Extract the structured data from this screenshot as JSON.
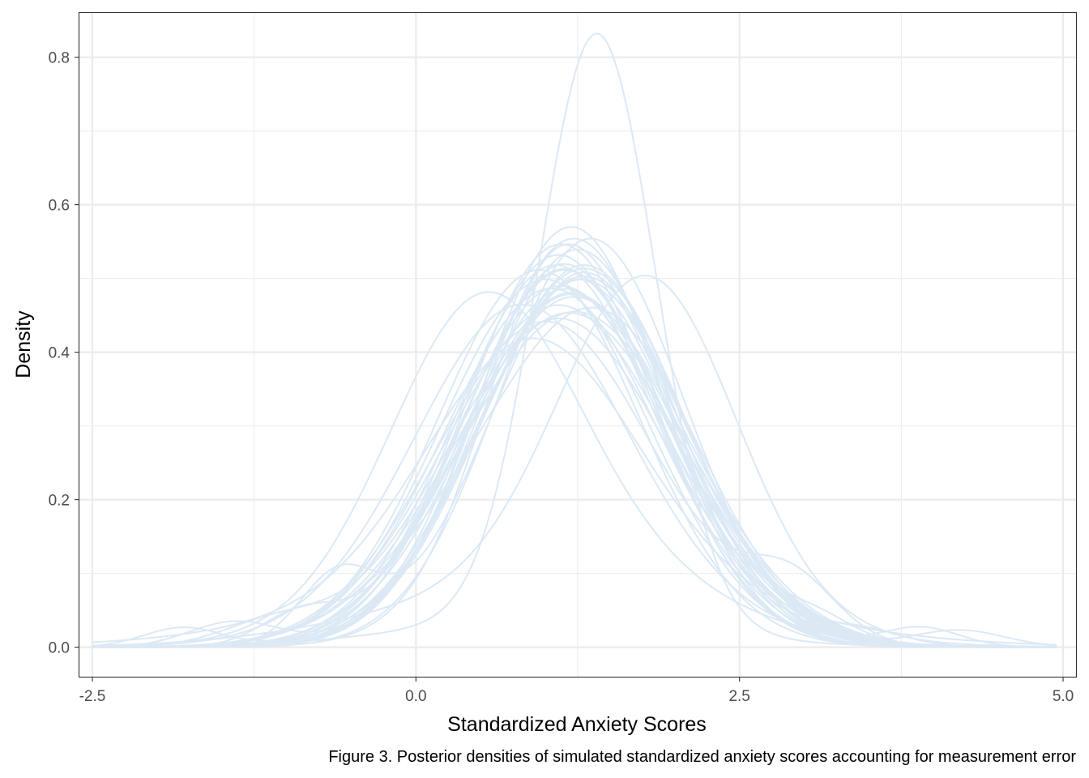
{
  "chart_data": {
    "type": "line",
    "xlabel": "Standardized Anxiety Scores",
    "ylabel": "Density",
    "caption": "Figure 3. Posterior densities of simulated standardized anxiety scores accounting for measurement error",
    "xlim": [
      -2.6,
      5.1
    ],
    "ylim": [
      -0.04,
      0.86
    ],
    "x_ticks": [
      {
        "value": -2.5,
        "label": "-2.5"
      },
      {
        "value": 0.0,
        "label": "0.0"
      },
      {
        "value": 2.5,
        "label": "2.5"
      },
      {
        "value": 5.0,
        "label": "5.0"
      }
    ],
    "y_ticks": [
      {
        "value": 0.0,
        "label": "0.0"
      },
      {
        "value": 0.2,
        "label": "0.2"
      },
      {
        "value": 0.4,
        "label": "0.4"
      },
      {
        "value": 0.6,
        "label": "0.6"
      },
      {
        "value": 0.8,
        "label": "0.8"
      }
    ],
    "x_minor_gridlines": [
      -1.25,
      1.25,
      3.75
    ],
    "y_minor_gridlines": [
      0.1,
      0.3,
      0.5,
      0.7
    ],
    "grid": true,
    "line_color": "#dce9f5",
    "series": [
      {
        "components": [
          [
            1.0,
            1.12,
            0.05
          ],
          [
            1.3,
            0.78,
            0.95
          ]
        ]
      },
      {
        "components": [
          [
            1.0,
            1.09,
            0.1
          ],
          [
            1.4,
            0.45,
            0.9
          ]
        ]
      },
      {
        "components": [
          [
            1.0,
            1.12,
            0.23
          ],
          [
            0.8,
            0.8,
            0.77
          ]
        ]
      },
      {
        "components": [
          [
            1.0,
            1.3,
            0.25
          ],
          [
            1.8,
            0.68,
            0.75
          ]
        ]
      },
      {
        "components": [
          [
            1.0,
            1.1,
            0.37
          ],
          [
            0.5,
            0.7,
            0.63
          ]
        ]
      },
      {
        "components": [
          [
            1.0,
            0.94,
            0.3
          ],
          [
            1.3,
            0.84,
            0.7
          ]
        ]
      },
      {
        "components": [
          [
            1.0,
            0.5,
            0.3
          ],
          [
            1.5,
            0.8,
            0.7
          ]
        ]
      },
      {
        "components": [
          [
            1.0,
            1.55,
            0.33
          ],
          [
            0.9,
            0.8,
            0.67
          ]
        ]
      },
      {
        "components": [
          [
            1.2,
            0.7,
            1.0
          ]
        ]
      },
      {
        "components": [
          [
            1.1,
            0.75,
            1.0
          ]
        ]
      },
      {
        "components": [
          [
            1.05,
            0.82,
            1.0
          ]
        ]
      },
      {
        "components": [
          [
            1.15,
            0.78,
            1.0
          ]
        ]
      },
      {
        "components": [
          [
            1.25,
            0.74,
            1.0
          ]
        ]
      },
      {
        "components": [
          [
            1.0,
            0.8,
            1.0
          ]
        ]
      },
      {
        "components": [
          [
            1.3,
            0.77,
            1.0
          ]
        ]
      },
      {
        "components": [
          [
            1.1,
            0.86,
            1.0
          ]
        ]
      },
      {
        "components": [
          [
            1.2,
            0.83,
            1.0
          ]
        ]
      },
      {
        "components": [
          [
            1.22,
            0.72,
            1.0
          ]
        ]
      },
      {
        "components": [
          [
            1.0,
            0.8,
            0.55
          ],
          [
            1.5,
            0.8,
            0.45
          ]
        ]
      },
      {
        "components": [
          [
            1.0,
            0.9,
            0.6
          ],
          [
            1.6,
            0.7,
            0.4
          ]
        ]
      },
      {
        "components": [
          [
            0.9,
            0.7,
            0.5
          ],
          [
            1.45,
            0.75,
            0.5
          ]
        ]
      },
      {
        "components": [
          [
            1.2,
            0.8,
            0.96
          ],
          [
            -1.8,
            0.3,
            0.02
          ],
          [
            3.1,
            0.3,
            0.02
          ]
        ]
      },
      {
        "components": [
          [
            1.1,
            0.85,
            0.95
          ],
          [
            -1.1,
            0.4,
            0.03
          ],
          [
            4.2,
            0.35,
            0.02
          ]
        ]
      },
      {
        "components": [
          [
            1.25,
            0.76,
            0.95
          ],
          [
            -1.4,
            0.35,
            0.03
          ],
          [
            3.9,
            0.3,
            0.02
          ]
        ]
      },
      {
        "components": [
          [
            1.15,
            0.78,
            0.95
          ],
          [
            -0.9,
            0.3,
            0.03
          ],
          [
            3.4,
            0.35,
            0.02
          ]
        ]
      },
      {
        "components": [
          [
            1.0,
            0.84,
            0.93
          ],
          [
            2.9,
            0.35,
            0.07
          ]
        ]
      },
      {
        "components": [
          [
            1.3,
            0.73,
            0.93
          ],
          [
            -0.6,
            0.3,
            0.07
          ]
        ]
      },
      {
        "components": [
          [
            1.05,
            0.74,
            0.58
          ],
          [
            1.6,
            0.7,
            0.42
          ]
        ]
      },
      {
        "components": [
          [
            0.85,
            0.7,
            0.45
          ],
          [
            1.45,
            0.8,
            0.55
          ]
        ]
      },
      {
        "components": [
          [
            1.0,
            0.62,
            0.4
          ],
          [
            1.4,
            0.85,
            0.6
          ]
        ]
      },
      {
        "components": [
          [
            1.35,
            0.72,
            1.0
          ]
        ]
      },
      {
        "components": [
          [
            1.08,
            0.77,
            1.0
          ]
        ]
      },
      {
        "components": [
          [
            1.18,
            0.88,
            1.0
          ]
        ]
      },
      {
        "components": [
          [
            1.28,
            0.8,
            1.0
          ]
        ]
      },
      {
        "components": [
          [
            1.12,
            0.73,
            1.0
          ]
        ]
      },
      {
        "components": [
          [
            0.95,
            0.78,
            1.0
          ]
        ]
      }
    ]
  }
}
